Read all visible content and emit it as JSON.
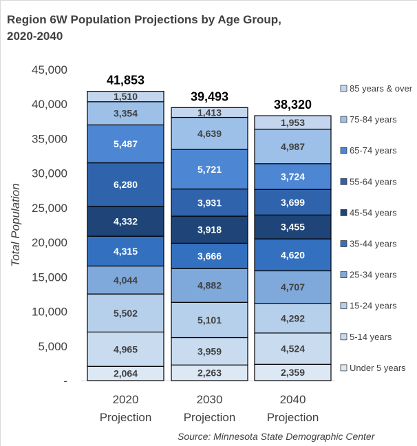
{
  "chart_data": {
    "type": "bar",
    "stacked": true,
    "title": "Region 6W Population Projections by Age Group, 2020-2040",
    "ylabel": "Total Population",
    "xlabel": "",
    "ylim": [
      0,
      45000
    ],
    "y_ticks": [
      "-",
      "5,000",
      "10,000",
      "15,000",
      "20,000",
      "25,000",
      "30,000",
      "35,000",
      "40,000",
      "45,000"
    ],
    "categories": [
      [
        "2020",
        "Projection"
      ],
      [
        "2030",
        "Projection"
      ],
      [
        "2040",
        "Projection"
      ]
    ],
    "totals": [
      41853,
      39493,
      38320
    ],
    "total_labels": [
      "41,853",
      "39,493",
      "38,320"
    ],
    "series": [
      {
        "name": "Under 5 years",
        "color": "#dde8f5",
        "values": [
          2064,
          2263,
          2359
        ],
        "labels": [
          "2,064",
          "2,263",
          "2,359"
        ]
      },
      {
        "name": "5-14 years",
        "color": "#c9dbef",
        "values": [
          4965,
          3959,
          4524
        ],
        "labels": [
          "4,965",
          "3,959",
          "4,524"
        ]
      },
      {
        "name": "15-24 years",
        "color": "#b6cfeb",
        "values": [
          5502,
          5101,
          4292
        ],
        "labels": [
          "5,502",
          "5,101",
          "4,292"
        ]
      },
      {
        "name": "25-34 years",
        "color": "#7fa9db",
        "values": [
          4044,
          4882,
          4707
        ],
        "labels": [
          "4,044",
          "4,882",
          "4,707"
        ]
      },
      {
        "name": "35-44 years",
        "color": "#3371c0",
        "values": [
          4315,
          3666,
          4620
        ],
        "labels": [
          "4,315",
          "3,666",
          "4,620"
        ]
      },
      {
        "name": "45-54 years",
        "color": "#1e4478",
        "values": [
          4332,
          3918,
          3455
        ],
        "labels": [
          "4,332",
          "3,918",
          "3,455"
        ]
      },
      {
        "name": "55-64 years",
        "color": "#2f63ab",
        "values": [
          6280,
          3931,
          3699
        ],
        "labels": [
          "6,280",
          "3,931",
          "3,699"
        ]
      },
      {
        "name": "65-74 years",
        "color": "#4d86d3",
        "values": [
          5487,
          5721,
          3724
        ],
        "labels": [
          "5,487",
          "5,721",
          "3,724"
        ]
      },
      {
        "name": "75-84 years",
        "color": "#9dc0e8",
        "values": [
          3354,
          4639,
          4987
        ],
        "labels": [
          "3,354",
          "4,639",
          "4,987"
        ]
      },
      {
        "name": "85 years & over",
        "color": "#c3d6ee",
        "values": [
          1510,
          1413,
          1953
        ],
        "labels": [
          "1,510",
          "1,413",
          "1,953"
        ]
      }
    ],
    "legend_position": "right",
    "grid": false
  },
  "source": "Source: Minnesota State Demographic Center"
}
